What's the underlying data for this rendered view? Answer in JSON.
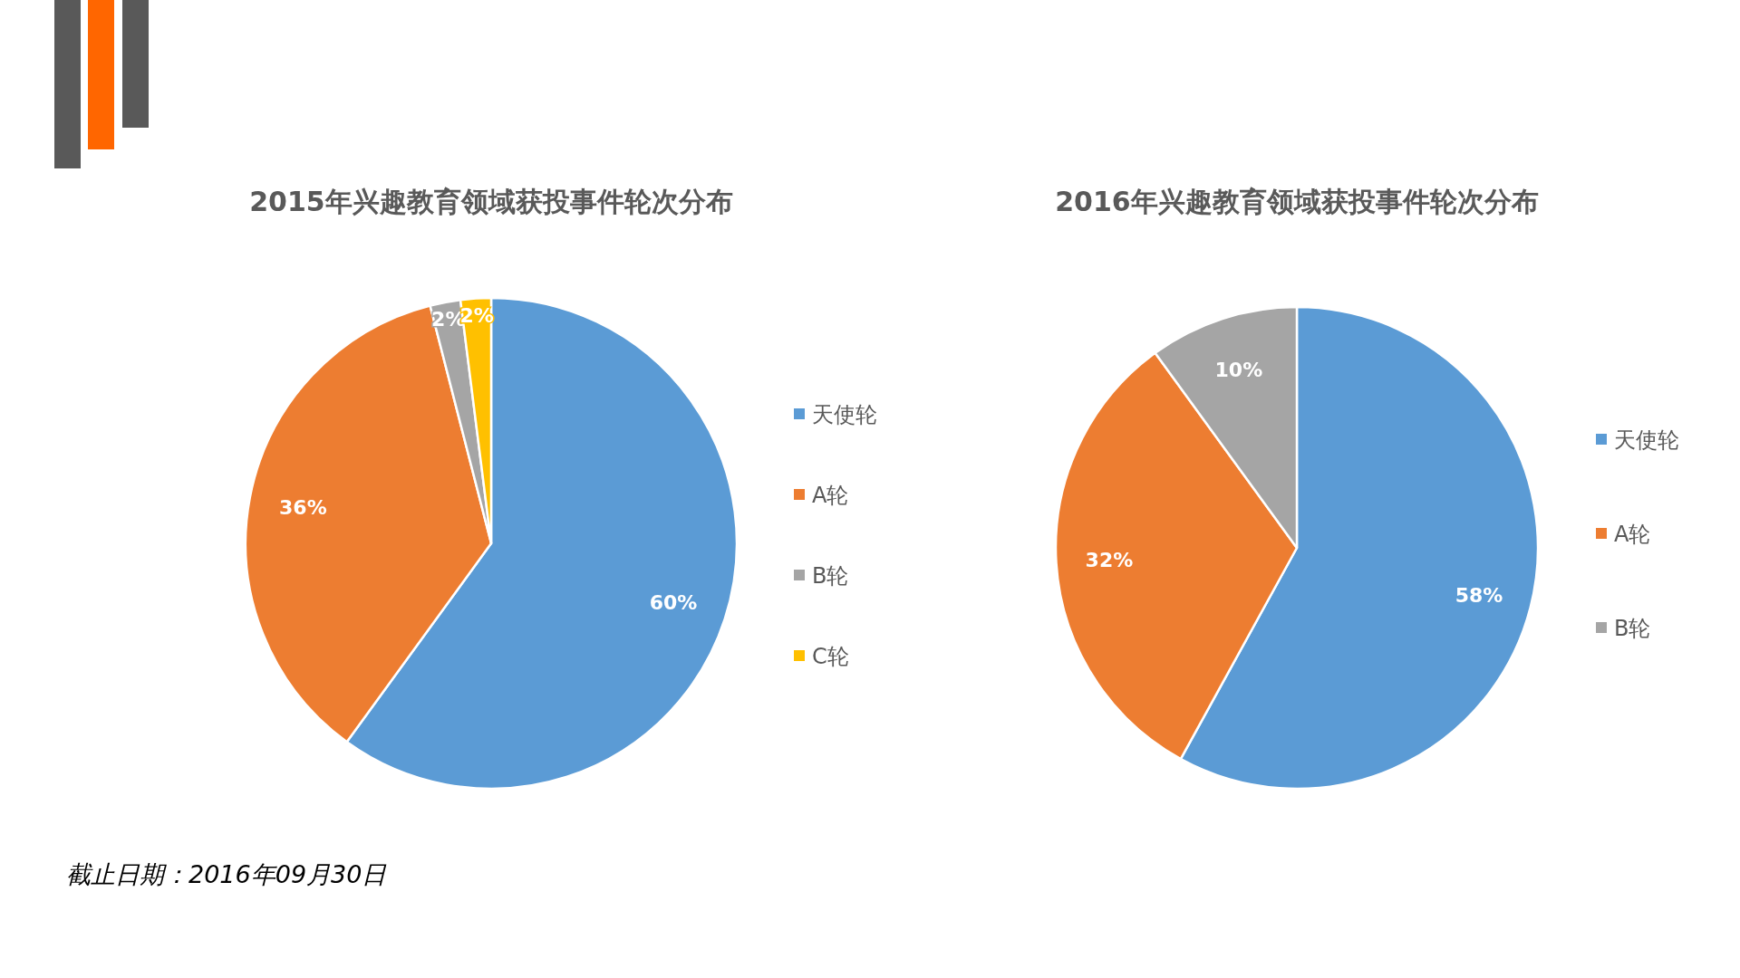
{
  "chart_data": [
    {
      "type": "pie",
      "title": "2015年兴趣教育领域获投事件轮次分布",
      "categories": [
        "天使轮",
        "A轮",
        "B轮",
        "C轮"
      ],
      "values": [
        60,
        36,
        2,
        2
      ],
      "colors": [
        "#5b9bd5",
        "#ed7d31",
        "#a5a5a5",
        "#ffc000"
      ],
      "value_labels": [
        "60%",
        "36%",
        "2%",
        "2%"
      ],
      "legend": "right",
      "annotations": [
        "截止日期：2016年09月30日"
      ]
    },
    {
      "type": "pie",
      "title": "2016年兴趣教育领域获投事件轮次分布",
      "categories": [
        "天使轮",
        "A轮",
        "B轮"
      ],
      "values": [
        58,
        32,
        10
      ],
      "colors": [
        "#5b9bd5",
        "#ed7d31",
        "#a5a5a5"
      ],
      "value_labels": [
        "58%",
        "32%",
        "10%"
      ],
      "legend": "right"
    }
  ]
}
